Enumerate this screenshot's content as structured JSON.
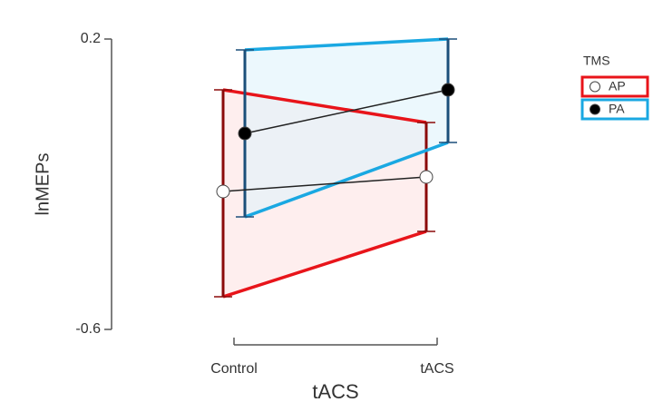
{
  "chart_data": {
    "type": "band-errorbar",
    "x_label": "tACS",
    "y_label": "lnMEPs",
    "categories": [
      "Control",
      "tACS"
    ],
    "ylim": [
      -0.6,
      0.2
    ],
    "yticks": [
      0.2,
      -0.6
    ],
    "legend_title": "TMS",
    "legend_position": "upper right",
    "series": [
      {
        "name": "AP",
        "color": "#e8141a",
        "errorbar_color": "#8b0a0a",
        "band_color": "#fde3e3",
        "marker_color": "#ffffff",
        "values": [
          -0.22,
          -0.18
        ],
        "lower": [
          -0.51,
          -0.33
        ],
        "upper": [
          0.06,
          -0.03
        ]
      },
      {
        "name": "PA",
        "color": "#1aa8e2",
        "errorbar_color": "#1b4f7a",
        "band_color": "#dff3fb",
        "marker_color": "#000000",
        "values": [
          -0.06,
          0.06
        ],
        "lower": [
          -0.29,
          -0.085
        ],
        "upper": [
          0.17,
          0.2
        ]
      }
    ]
  }
}
